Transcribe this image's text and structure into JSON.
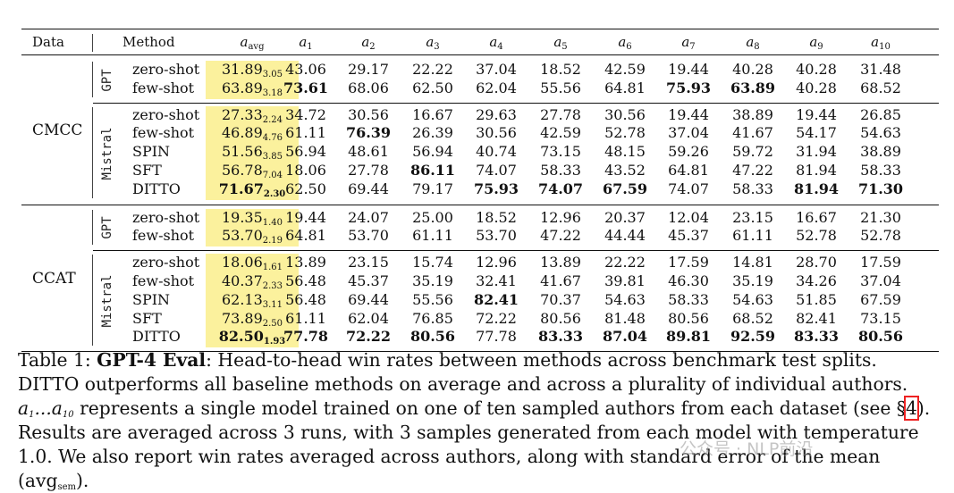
{
  "columns": {
    "data": "Data",
    "method": "Method",
    "avg": {
      "base": "a",
      "sub": "avg"
    },
    "authors": [
      {
        "base": "a",
        "sub": "1"
      },
      {
        "base": "a",
        "sub": "2"
      },
      {
        "base": "a",
        "sub": "3"
      },
      {
        "base": "a",
        "sub": "4"
      },
      {
        "base": "a",
        "sub": "5"
      },
      {
        "base": "a",
        "sub": "6"
      },
      {
        "base": "a",
        "sub": "7"
      },
      {
        "base": "a",
        "sub": "8"
      },
      {
        "base": "a",
        "sub": "9"
      },
      {
        "base": "a",
        "sub": "10"
      }
    ]
  },
  "datasets": [
    {
      "name": "CMCC",
      "groups": [
        {
          "model": "GPT",
          "rows": [
            {
              "method": "zero-shot",
              "avg": "31.89",
              "sem": "3.05",
              "avg_bold": false,
              "vals": [
                "43.06",
                "29.17",
                "22.22",
                "37.04",
                "18.52",
                "42.59",
                "19.44",
                "40.28",
                "40.28",
                "31.48"
              ],
              "bold": []
            },
            {
              "method": "few-shot",
              "avg": "63.89",
              "sem": "3.18",
              "avg_bold": false,
              "vals": [
                "73.61",
                "68.06",
                "62.50",
                "62.04",
                "55.56",
                "64.81",
                "75.93",
                "63.89",
                "40.28",
                "68.52"
              ],
              "bold": [
                0,
                6,
                7
              ]
            }
          ]
        },
        {
          "model": "Mistral",
          "rows": [
            {
              "method": "zero-shot",
              "avg": "27.33",
              "sem": "2.24",
              "avg_bold": false,
              "vals": [
                "34.72",
                "30.56",
                "16.67",
                "29.63",
                "27.78",
                "30.56",
                "19.44",
                "38.89",
                "19.44",
                "26.85"
              ],
              "bold": []
            },
            {
              "method": "few-shot",
              "avg": "46.89",
              "sem": "4.76",
              "avg_bold": false,
              "vals": [
                "61.11",
                "76.39",
                "26.39",
                "30.56",
                "42.59",
                "52.78",
                "37.04",
                "41.67",
                "54.17",
                "54.63"
              ],
              "bold": [
                1
              ]
            },
            {
              "method": "SPIN",
              "avg": "51.56",
              "sem": "3.85",
              "avg_bold": false,
              "vals": [
                "56.94",
                "48.61",
                "56.94",
                "40.74",
                "73.15",
                "48.15",
                "59.26",
                "59.72",
                "31.94",
                "38.89"
              ],
              "bold": []
            },
            {
              "method": "SFT",
              "avg": "56.78",
              "sem": "7.04",
              "avg_bold": false,
              "vals": [
                "18.06",
                "27.78",
                "86.11",
                "74.07",
                "58.33",
                "43.52",
                "64.81",
                "47.22",
                "81.94",
                "58.33"
              ],
              "bold": [
                2
              ]
            },
            {
              "method": "DITTO",
              "avg": "71.67",
              "sem": "2.30",
              "avg_bold": true,
              "vals": [
                "62.50",
                "69.44",
                "79.17",
                "75.93",
                "74.07",
                "67.59",
                "74.07",
                "58.33",
                "81.94",
                "71.30"
              ],
              "bold": [
                3,
                4,
                5,
                8,
                9
              ]
            }
          ]
        }
      ]
    },
    {
      "name": "CCAT",
      "groups": [
        {
          "model": "GPT",
          "rows": [
            {
              "method": "zero-shot",
              "avg": "19.35",
              "sem": "1.40",
              "avg_bold": false,
              "vals": [
                "19.44",
                "24.07",
                "25.00",
                "18.52",
                "12.96",
                "20.37",
                "12.04",
                "23.15",
                "16.67",
                "21.30"
              ],
              "bold": []
            },
            {
              "method": "few-shot",
              "avg": "53.70",
              "sem": "2.19",
              "avg_bold": false,
              "vals": [
                "64.81",
                "53.70",
                "61.11",
                "53.70",
                "47.22",
                "44.44",
                "45.37",
                "61.11",
                "52.78",
                "52.78"
              ],
              "bold": []
            }
          ]
        },
        {
          "model": "Mistral",
          "rows": [
            {
              "method": "zero-shot",
              "avg": "18.06",
              "sem": "1.61",
              "avg_bold": false,
              "vals": [
                "13.89",
                "23.15",
                "15.74",
                "12.96",
                "13.89",
                "22.22",
                "17.59",
                "14.81",
                "28.70",
                "17.59"
              ],
              "bold": []
            },
            {
              "method": "few-shot",
              "avg": "40.37",
              "sem": "2.33",
              "avg_bold": false,
              "vals": [
                "56.48",
                "45.37",
                "35.19",
                "32.41",
                "41.67",
                "39.81",
                "46.30",
                "35.19",
                "34.26",
                "37.04"
              ],
              "bold": []
            },
            {
              "method": "SPIN",
              "avg": "62.13",
              "sem": "3.11",
              "avg_bold": false,
              "vals": [
                "56.48",
                "69.44",
                "55.56",
                "82.41",
                "70.37",
                "54.63",
                "58.33",
                "54.63",
                "51.85",
                "67.59"
              ],
              "bold": [
                3
              ]
            },
            {
              "method": "SFT",
              "avg": "73.89",
              "sem": "2.50",
              "avg_bold": false,
              "vals": [
                "61.11",
                "62.04",
                "76.85",
                "72.22",
                "80.56",
                "81.48",
                "80.56",
                "68.52",
                "82.41",
                "73.15"
              ],
              "bold": []
            },
            {
              "method": "DITTO",
              "avg": "82.50",
              "sem": "1.93",
              "avg_bold": true,
              "vals": [
                "77.78",
                "72.22",
                "80.56",
                "77.78",
                "83.33",
                "87.04",
                "89.81",
                "92.59",
                "83.33",
                "80.56"
              ],
              "bold": [
                0,
                1,
                2,
                4,
                5,
                6,
                7,
                8,
                9
              ]
            }
          ]
        }
      ]
    }
  ],
  "caption": {
    "label": "Table 1:",
    "bold_title": "GPT-4 Eval",
    "text1": ": Head-to-head win rates between methods across benchmark test splits. DITTO outperforms all baseline methods on average and across a plurality of individual authors. ",
    "math_range": "a1...a10",
    "text2": " represents a single model trained on one of ten sampled authors from each dataset (see §",
    "ref": "4",
    "text3": "). Results are averaged across 3 runs, with 3 samples generated from each model with temperature 1.0. We also report win rates averaged across authors, along with standard error of the mean (avg",
    "sem_sub": "sem",
    "text4": ")."
  },
  "watermark": "公众号 · NLP前沿"
}
